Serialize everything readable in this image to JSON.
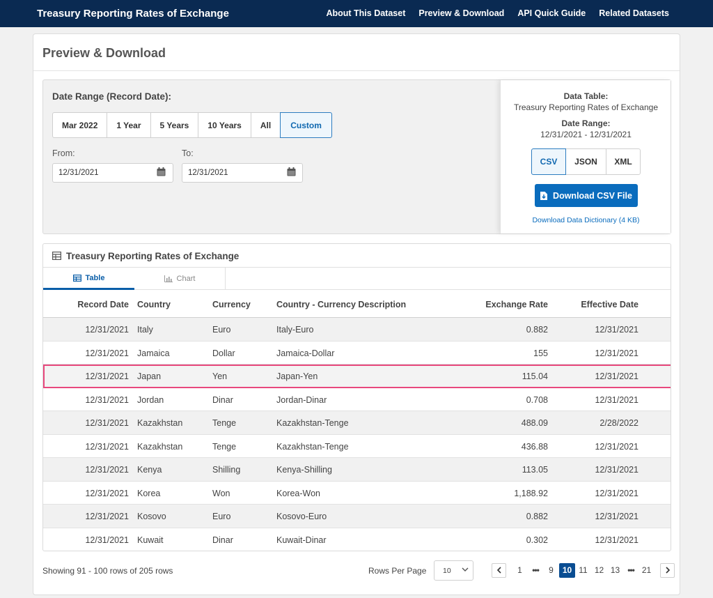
{
  "topbar": {
    "title": "Treasury Reporting Rates of Exchange",
    "nav": [
      "About This Dataset",
      "Preview & Download",
      "API Quick Guide",
      "Related Datasets"
    ]
  },
  "page": {
    "title": "Preview & Download"
  },
  "filters": {
    "date_range_label": "Date Range (Record Date):",
    "range_options": [
      "Mar 2022",
      "1 Year",
      "5 Years",
      "10 Years",
      "All",
      "Custom"
    ],
    "selected_range": "Custom",
    "from_label": "From:",
    "from_value": "12/31/2021",
    "to_label": "To:",
    "to_value": "12/31/2021"
  },
  "download": {
    "data_table_label": "Data Table:",
    "data_table_name": "Treasury Reporting Rates of Exchange",
    "date_range_label": "Date Range:",
    "date_range_value": "12/31/2021 - 12/31/2021",
    "formats": [
      "CSV",
      "JSON",
      "XML"
    ],
    "selected_format": "CSV",
    "download_button": "Download CSV File",
    "dictionary_link": "Download Data Dictionary (4 KB)"
  },
  "table_card": {
    "title": "Treasury Reporting Rates of Exchange",
    "tabs": [
      "Table",
      "Chart"
    ],
    "active_tab": "Table",
    "columns": [
      "Record Date",
      "Country",
      "Currency",
      "Country - Currency Description",
      "Exchange Rate",
      "Effective Date"
    ],
    "rows": [
      [
        "12/31/2021",
        "Italy",
        "Euro",
        "Italy-Euro",
        "0.882",
        "12/31/2021"
      ],
      [
        "12/31/2021",
        "Jamaica",
        "Dollar",
        "Jamaica-Dollar",
        "155",
        "12/31/2021"
      ],
      [
        "12/31/2021",
        "Japan",
        "Yen",
        "Japan-Yen",
        "115.04",
        "12/31/2021"
      ],
      [
        "12/31/2021",
        "Jordan",
        "Dinar",
        "Jordan-Dinar",
        "0.708",
        "12/31/2021"
      ],
      [
        "12/31/2021",
        "Kazakhstan",
        "Tenge",
        "Kazakhstan-Tenge",
        "488.09",
        "2/28/2022"
      ],
      [
        "12/31/2021",
        "Kazakhstan",
        "Tenge",
        "Kazakhstan-Tenge",
        "436.88",
        "12/31/2021"
      ],
      [
        "12/31/2021",
        "Kenya",
        "Shilling",
        "Kenya-Shilling",
        "113.05",
        "12/31/2021"
      ],
      [
        "12/31/2021",
        "Korea",
        "Won",
        "Korea-Won",
        "1,188.92",
        "12/31/2021"
      ],
      [
        "12/31/2021",
        "Kosovo",
        "Euro",
        "Kosovo-Euro",
        "0.882",
        "12/31/2021"
      ],
      [
        "12/31/2021",
        "Kuwait",
        "Dinar",
        "Kuwait-Dinar",
        "0.302",
        "12/31/2021"
      ]
    ],
    "highlighted_row": "Japan"
  },
  "footer": {
    "showing": "Showing 91 - 100 rows of 205 rows",
    "rows_per_page_label": "Rows Per Page",
    "rows_per_page_value": "10",
    "pages": [
      "1",
      "9",
      "10",
      "11",
      "12",
      "13",
      "21"
    ],
    "current_page": "10"
  },
  "colors": {
    "topbar": "#0a2a52",
    "primary": "#0a6cbd",
    "active_page": "#0a4d92",
    "highlight_outline": "#e8487d"
  }
}
